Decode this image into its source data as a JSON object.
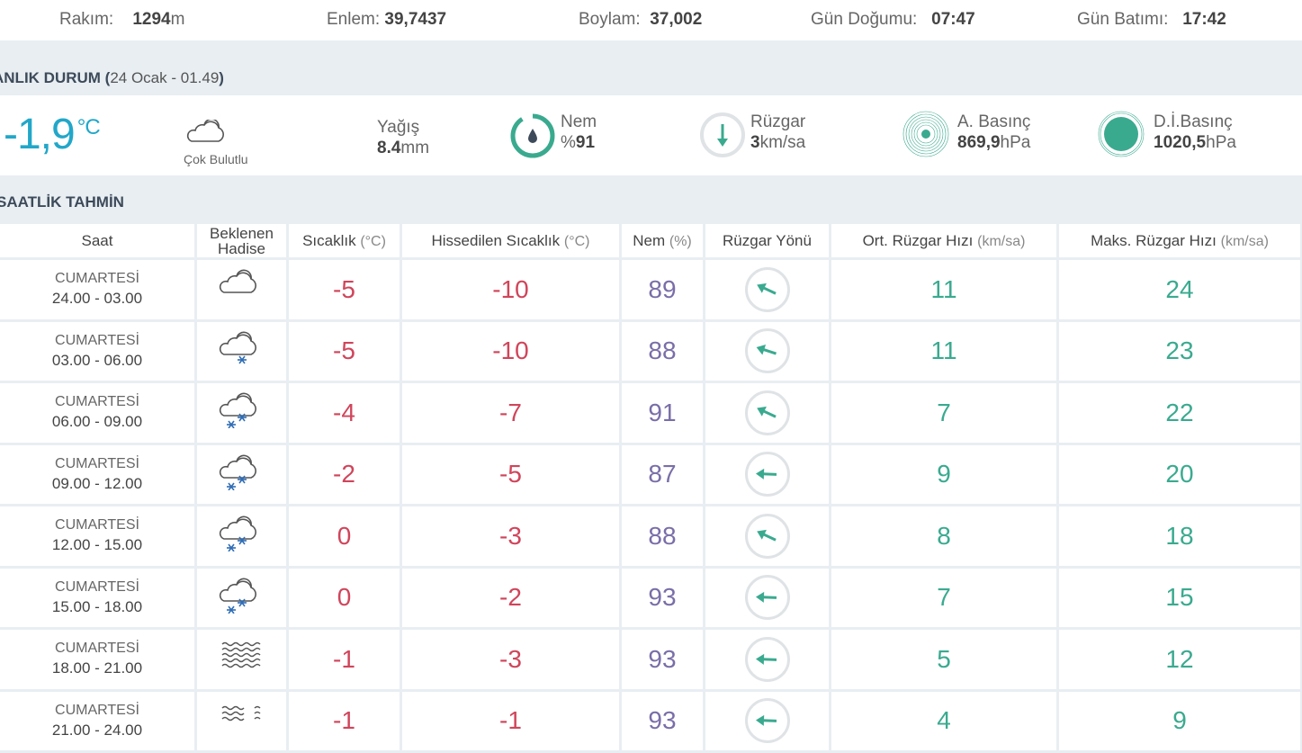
{
  "top": {
    "altitude_label": "Rakım:",
    "altitude": "1294",
    "altitude_unit": "m",
    "lat_label": "Enlem:",
    "lat": "39,7437",
    "lon_label": "Boylam:",
    "lon": "37,002",
    "sunrise_label": "Gün Doğumu:",
    "sunrise": "07:47",
    "sunset_label": "Gün Batımı:",
    "sunset": "17:42"
  },
  "current": {
    "title": "ANLIK DURUM (",
    "date": "24 Ocak - 01.49",
    "close": ")",
    "temp": "-1,9",
    "temp_unit": "°C",
    "condition": "Çok Bulutlu",
    "precip_label": "Yağış",
    "precip": "8.4",
    "precip_unit": "mm",
    "hum_label": "Nem",
    "hum_prefix": "%",
    "hum": "91",
    "hum_fraction": 0.91,
    "wind_label": "Rüzgar",
    "wind": "3",
    "wind_unit": "km/sa",
    "wind_rotation_deg": 160,
    "pres_label": "A. Basınç",
    "pres": "869,9",
    "pres_unit": "hPa",
    "sea_label": "D.İ.Basınç",
    "sea": "1020,5",
    "sea_unit": "hPa",
    "accent": "#22a7c9",
    "green": "#3aaa8f"
  },
  "hourly": {
    "title": "SAATLİK TAHMİN",
    "headers": {
      "saat": "Saat",
      "hadise": "Beklenen Hadise",
      "temp": "Sıcaklık",
      "temp_u": "(°C)",
      "feel": "Hissedilen Sıcaklık",
      "feel_u": "(°C)",
      "hum": "Nem",
      "hum_u": "(%)",
      "dir": "Rüzgar Yönü",
      "avg": "Ort. Rüzgar Hızı",
      "avg_u": "(km/sa)",
      "max": "Maks. Rüzgar Hızı",
      "max_u": "(km/sa)"
    },
    "rows": [
      {
        "day": "CUMARTESİ",
        "time": "24.00 - 03.00",
        "icon": "cloud",
        "temp": "-5",
        "feel": "-10",
        "hum": "89",
        "dir": -155,
        "avg": "11",
        "max": "24"
      },
      {
        "day": "CUMARTESİ",
        "time": "03.00 - 06.00",
        "icon": "snow1",
        "temp": "-5",
        "feel": "-10",
        "hum": "88",
        "dir": -162,
        "avg": "11",
        "max": "23"
      },
      {
        "day": "CUMARTESİ",
        "time": "06.00 - 09.00",
        "icon": "snow2",
        "temp": "-4",
        "feel": "-7",
        "hum": "91",
        "dir": -155,
        "avg": "7",
        "max": "22"
      },
      {
        "day": "CUMARTESİ",
        "time": "09.00 - 12.00",
        "icon": "snow2",
        "temp": "-2",
        "feel": "-5",
        "hum": "87",
        "dir": -178,
        "avg": "9",
        "max": "20"
      },
      {
        "day": "CUMARTESİ",
        "time": "12.00 - 15.00",
        "icon": "snow2",
        "temp": "0",
        "feel": "-3",
        "hum": "88",
        "dir": -155,
        "avg": "8",
        "max": "18"
      },
      {
        "day": "CUMARTESİ",
        "time": "15.00 - 18.00",
        "icon": "snow2",
        "temp": "0",
        "feel": "-2",
        "hum": "93",
        "dir": -178,
        "avg": "7",
        "max": "15"
      },
      {
        "day": "CUMARTESİ",
        "time": "18.00 - 21.00",
        "icon": "fog",
        "temp": "-1",
        "feel": "-3",
        "hum": "93",
        "dir": -178,
        "avg": "5",
        "max": "12"
      },
      {
        "day": "CUMARTESİ",
        "time": "21.00 - 24.00",
        "icon": "fog2",
        "temp": "-1",
        "feel": "-1",
        "hum": "93",
        "dir": -178,
        "avg": "4",
        "max": "9"
      }
    ]
  }
}
